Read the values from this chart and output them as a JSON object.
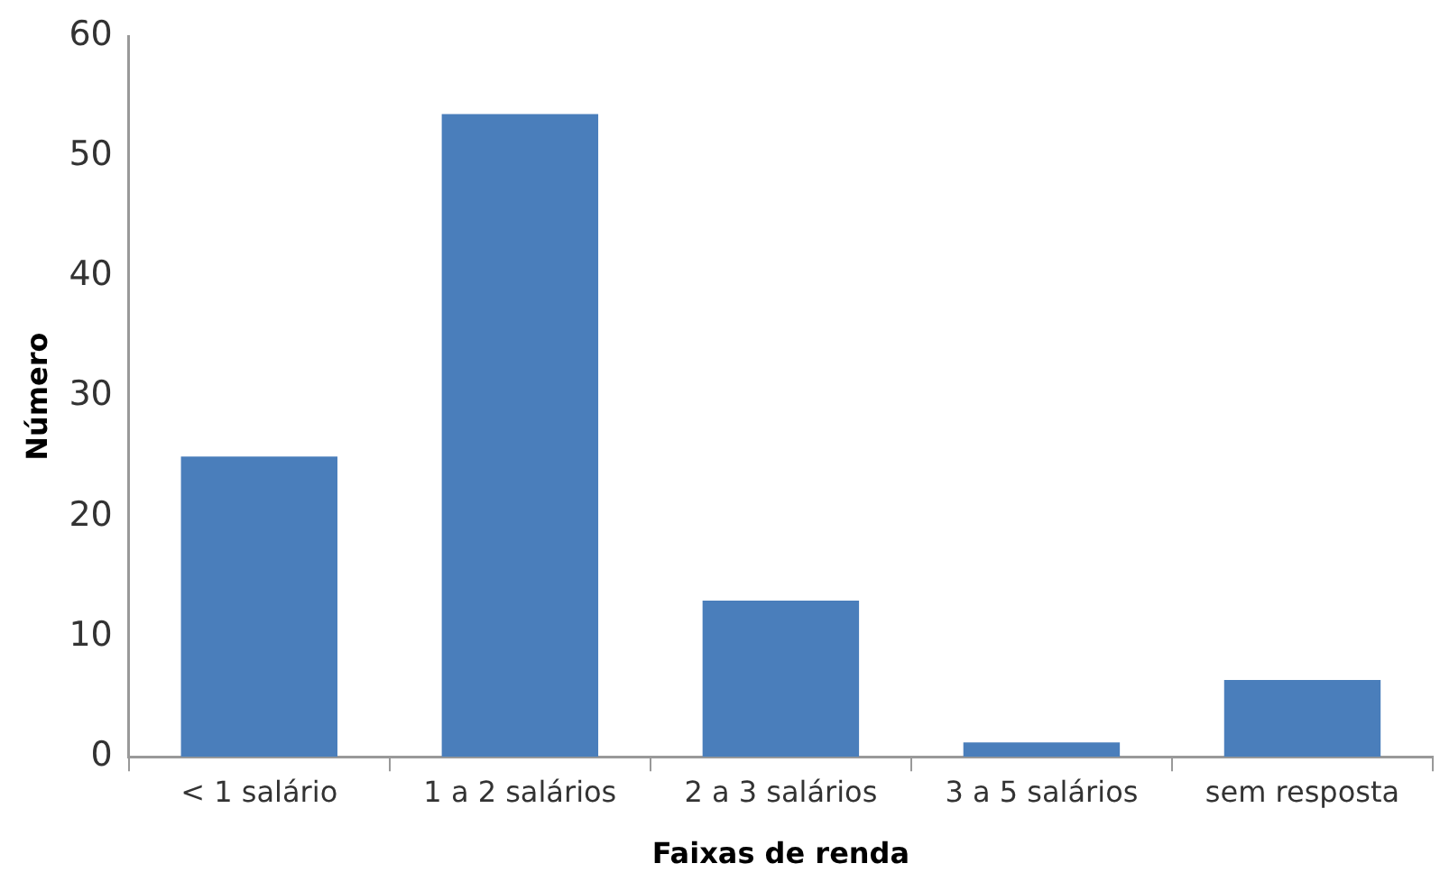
{
  "chart_data": {
    "type": "bar",
    "xlabel": "Faixas de renda",
    "ylabel": "Número",
    "categories": [
      "< 1 salário",
      "1 a 2 salários",
      "2 a 3 salários",
      "3 a 5 salários",
      "sem resposta"
    ],
    "values": [
      25,
      53.5,
      13,
      1.2,
      6.4
    ],
    "color": "#4a7ebb",
    "ylim": [
      0,
      60
    ],
    "yticks": [
      0,
      10,
      20,
      30,
      40,
      50,
      60
    ],
    "grid": false,
    "legend": false
  }
}
